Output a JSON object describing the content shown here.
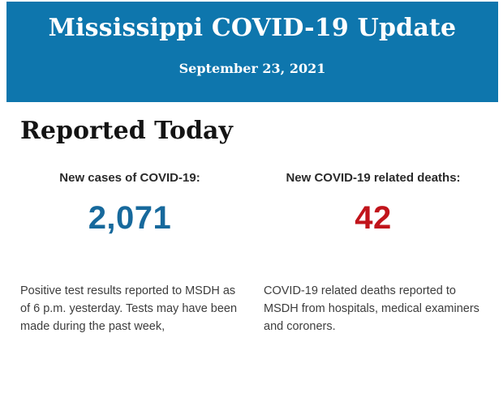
{
  "header": {
    "title": "Mississippi COVID-19 Update",
    "date": "September 23, 2021",
    "background_color": "#0e76ad",
    "text_color": "#ffffff"
  },
  "section": {
    "heading": "Reported Today"
  },
  "stats": {
    "cases": {
      "label": "New cases of COVID-19:",
      "value": "2,071",
      "value_color": "#17699c",
      "description": "Positive test results reported to MSDH as of 6 p.m. yesterday. Tests may have been made during the past week,"
    },
    "deaths": {
      "label": "New COVID-19 related deaths:",
      "value": "42",
      "value_color": "#c1141b",
      "description": "COVID-19 related deaths reported to MSDH from hospitals, medical examiners and coroners."
    }
  }
}
